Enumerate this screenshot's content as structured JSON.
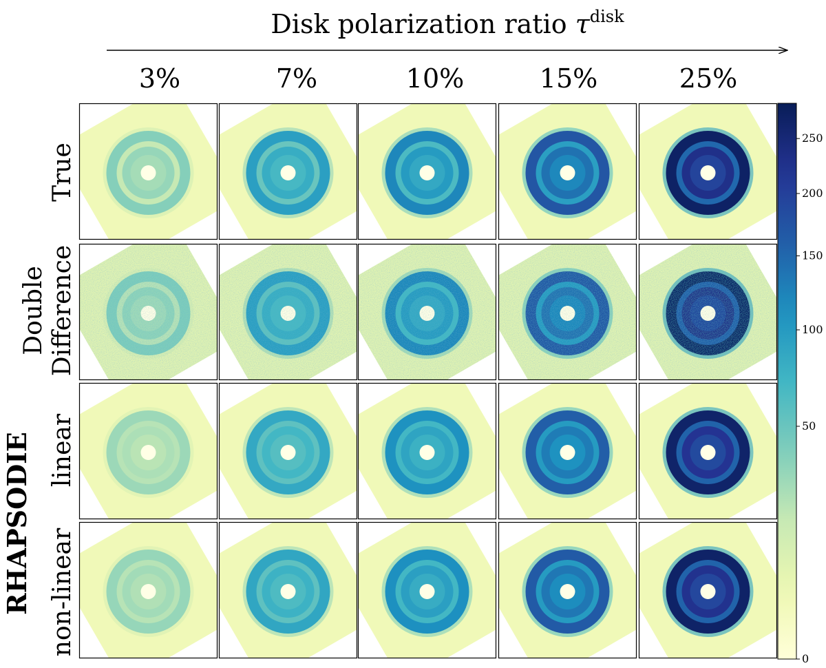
{
  "figure": {
    "axis_title": "Disk polarization ratio",
    "axis_symbol": "τ",
    "axis_superscript": "disk",
    "columns": [
      "3%",
      "7%",
      "10%",
      "15%",
      "25%"
    ],
    "rows": [
      "True",
      "Double",
      "Difference",
      "linear",
      "non-linear"
    ],
    "group_label": "RHAPSODIE",
    "colorbar": {
      "ticks": [
        "0",
        "50",
        "100",
        "150",
        "200",
        "250"
      ],
      "tick_values": [
        0,
        50,
        100,
        150,
        200,
        250
      ],
      "scale": "sqrt",
      "max": 285,
      "colors": [
        "#ffffd9",
        "#edf8b1",
        "#c7e9b4",
        "#7fcdbb",
        "#41b6c4",
        "#1d91c0",
        "#225ea8",
        "#253494",
        "#081d58"
      ]
    }
  },
  "panels": {
    "ring_intensity": [
      [
        38,
        95,
        120,
        170,
        270
      ],
      [
        40,
        95,
        120,
        170,
        270
      ],
      [
        30,
        85,
        110,
        160,
        265
      ],
      [
        32,
        88,
        112,
        165,
        268
      ]
    ],
    "gap_intensity": [
      [
        18,
        50,
        65,
        95,
        150
      ],
      [
        22,
        55,
        70,
        100,
        160
      ],
      [
        22,
        55,
        70,
        100,
        155
      ],
      [
        22,
        55,
        70,
        100,
        155
      ]
    ],
    "inner_intensity": [
      [
        32,
        80,
        100,
        140,
        230
      ],
      [
        34,
        80,
        100,
        140,
        230
      ],
      [
        25,
        70,
        90,
        130,
        220
      ],
      [
        28,
        75,
        95,
        135,
        225
      ]
    ],
    "background_intensity": [
      [
        3,
        3,
        3,
        3,
        3
      ],
      [
        8,
        8,
        8,
        8,
        8
      ],
      [
        3,
        3,
        3,
        3,
        3
      ],
      [
        3,
        3,
        3,
        3,
        3
      ]
    ],
    "noisy_rows": [
      1
    ]
  }
}
